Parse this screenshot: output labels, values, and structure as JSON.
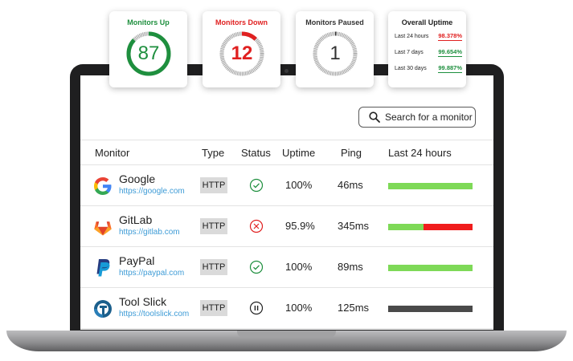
{
  "cards": [
    {
      "title": "Monitors Up",
      "value": "87",
      "color": "#1e8f3e",
      "fraction": 0.87
    },
    {
      "title": "Monitors Down",
      "value": "12",
      "color": "#e02020",
      "fraction": 0.12
    },
    {
      "title": "Monitors Paused",
      "value": "1",
      "color": "#333333",
      "fraction": 0.01
    }
  ],
  "uptime_card": {
    "title": "Overall Uptime",
    "rows": [
      {
        "label": "Last 24 hours",
        "value": "98.378%",
        "color": "#e02020"
      },
      {
        "label": "Last 7 days",
        "value": "99.654%",
        "color": "#1e8f3e"
      },
      {
        "label": "Last 30 days",
        "value": "99.887%",
        "color": "#1e8f3e"
      }
    ]
  },
  "search": {
    "label": "Search for a monitor"
  },
  "table": {
    "headers": {
      "monitor": "Monitor",
      "type": "Type",
      "status": "Status",
      "uptime": "Uptime",
      "ping": "Ping",
      "last24": "Last 24 hours"
    },
    "rows": [
      {
        "name": "Google",
        "url": "https://google.com",
        "type": "HTTP",
        "status": "up",
        "uptime": "100%",
        "ping": "46ms",
        "bar": [
          {
            "fraction": 1.0,
            "color": "#7ed957"
          }
        ]
      },
      {
        "name": "GitLab",
        "url": "https://gitlab.com",
        "type": "HTTP",
        "status": "down",
        "uptime": "95.9%",
        "ping": "345ms",
        "bar": [
          {
            "fraction": 0.42,
            "color": "#7ed957"
          },
          {
            "fraction": 0.58,
            "color": "#f01d1d"
          }
        ]
      },
      {
        "name": "PayPal",
        "url": "https://paypal.com",
        "type": "HTTP",
        "status": "up",
        "uptime": "100%",
        "ping": "89ms",
        "bar": [
          {
            "fraction": 1.0,
            "color": "#7ed957"
          }
        ]
      },
      {
        "name": "Tool Slick",
        "url": "https://toolslick.com",
        "type": "HTTP",
        "status": "paused",
        "uptime": "100%",
        "ping": "125ms",
        "bar": [
          {
            "fraction": 1.0,
            "color": "#4a4a4a"
          }
        ]
      }
    ]
  }
}
